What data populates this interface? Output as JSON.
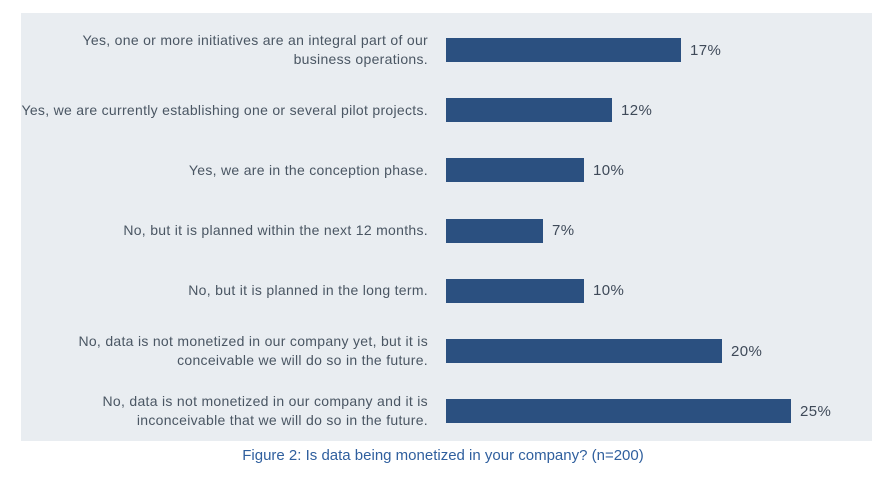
{
  "chart_data": {
    "type": "bar",
    "orientation": "horizontal",
    "title": "",
    "caption": "Figure 2: Is data being monetized in your company? (n=200)",
    "categories": [
      "Yes, one or more initiatives are an integral part of our business operations.",
      "Yes, we are currently establishing one or several pilot projects.",
      "Yes, we are in the conception phase.",
      "No, but it is planned within the next 12 months.",
      "No, but it is planned in the long term.",
      "No, data is not monetized in our company yet, but it is conceivable we will do so in the future.",
      "No, data is not monetized in our company and it is inconceivable that we will do so in the future."
    ],
    "values": [
      17,
      12,
      10,
      7,
      10,
      20,
      25
    ],
    "value_labels": [
      "17%",
      "12%",
      "10%",
      "7%",
      "10%",
      "20%",
      "25%"
    ],
    "xlim": [
      0,
      31
    ],
    "grid": "off",
    "legend": "none",
    "bar_color": "#2b5080",
    "panel_bg": "#e9edf1",
    "label_color": "#4a5663",
    "value_color": "#3f4a59",
    "caption_color": "#2f5f9e"
  }
}
